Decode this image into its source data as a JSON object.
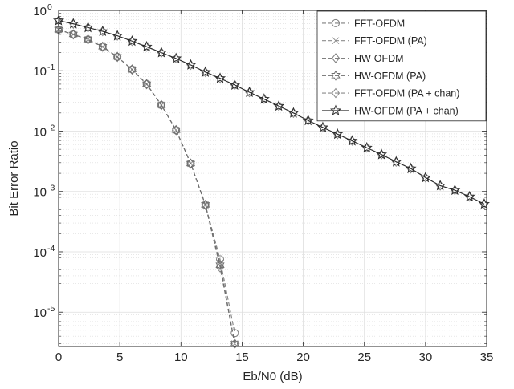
{
  "chart_data": {
    "type": "line",
    "xlabel": "Eb/N0 (dB)",
    "ylabel": "Bit Error Ratio",
    "xlim": [
      0,
      35
    ],
    "ylim": [
      2.7e-06,
      1
    ],
    "yscale": "log",
    "grid": true,
    "minor_grid": true,
    "legend_position": "top-right",
    "x_ticks": [
      0,
      5,
      10,
      15,
      20,
      25,
      30,
      35
    ],
    "x_tick_labels": [
      "0",
      "5",
      "10",
      "15",
      "20",
      "25",
      "30",
      "35"
    ],
    "y_ticks": [
      1e-05,
      0.0001,
      0.001,
      0.01,
      0.1,
      1
    ],
    "y_tick_labels": [
      {
        "base": "10",
        "exp": "-5"
      },
      {
        "base": "10",
        "exp": "-4"
      },
      {
        "base": "10",
        "exp": "-3"
      },
      {
        "base": "10",
        "exp": "-2"
      },
      {
        "base": "10",
        "exp": "-1"
      },
      {
        "base": "10",
        "exp": "0"
      }
    ],
    "series": [
      {
        "name": "FFT-OFDM",
        "marker": "circle",
        "color": "#7f7f7f",
        "dashed": true,
        "x": [
          0,
          1.2,
          2.4,
          3.6,
          4.8,
          6.0,
          7.2,
          8.4,
          9.6,
          10.8,
          12.0,
          13.2,
          14.4
        ],
        "y": [
          0.48,
          0.4,
          0.33,
          0.25,
          0.17,
          0.105,
          0.06,
          0.027,
          0.0104,
          0.0029,
          0.0006,
          7.5e-05,
          4.5e-06
        ]
      },
      {
        "name": "FFT-OFDM (PA)",
        "marker": "x",
        "color": "#8c8c8c",
        "dashed": true,
        "x": [
          0,
          1.2,
          2.4,
          3.6,
          4.8,
          6.0,
          7.2,
          8.4,
          9.6,
          10.8,
          12.0,
          13.2,
          14.4
        ],
        "y": [
          0.48,
          0.4,
          0.33,
          0.25,
          0.17,
          0.105,
          0.06,
          0.027,
          0.0104,
          0.0029,
          0.0006,
          6.5e-05,
          3e-06
        ]
      },
      {
        "name": "HW-OFDM",
        "marker": "diamond",
        "color": "#808080",
        "dashed": true,
        "x": [
          0,
          1.2,
          2.4,
          3.6,
          4.8,
          6.0,
          7.2,
          8.4,
          9.6,
          10.8,
          12.0,
          13.2,
          14.4
        ],
        "y": [
          0.48,
          0.4,
          0.33,
          0.25,
          0.17,
          0.105,
          0.06,
          0.027,
          0.0104,
          0.0029,
          0.0006,
          5.5e-05,
          3e-06
        ]
      },
      {
        "name": "HW-OFDM (PA)",
        "marker": "hexagram",
        "color": "#6e6e6e",
        "dashed": true,
        "x": [
          0,
          1.2,
          2.4,
          3.6,
          4.8,
          6.0,
          7.2,
          8.4,
          9.6,
          10.8,
          12.0,
          13.2,
          14.4
        ],
        "y": [
          0.48,
          0.4,
          0.33,
          0.25,
          0.17,
          0.105,
          0.06,
          0.027,
          0.0104,
          0.0029,
          0.0006,
          6e-05,
          3e-06
        ]
      },
      {
        "name": "FFT-OFDM (PA + chan)",
        "marker": "diamond",
        "color": "#8a8a8a",
        "dashed": true,
        "x": [
          0,
          1.2,
          2.4,
          3.6,
          4.8,
          6.0,
          7.2,
          8.4,
          9.6,
          10.8,
          12.0,
          13.2,
          14.4,
          15.6,
          16.8,
          18.0,
          19.2,
          20.4,
          21.6,
          22.8,
          24.0,
          25.2,
          26.4,
          27.6,
          28.8,
          30.0,
          31.2,
          32.4,
          33.6,
          34.8
        ],
        "y": [
          0.68,
          0.6,
          0.52,
          0.45,
          0.38,
          0.31,
          0.25,
          0.2,
          0.16,
          0.125,
          0.095,
          0.075,
          0.058,
          0.044,
          0.034,
          0.026,
          0.02,
          0.015,
          0.0115,
          0.0089,
          0.0069,
          0.0053,
          0.0041,
          0.0031,
          0.0024,
          0.0017,
          0.00125,
          0.00105,
          0.00082,
          0.00062
        ]
      },
      {
        "name": "HW-OFDM (PA + chan)",
        "marker": "star",
        "color": "#2b2b2b",
        "dashed": false,
        "x": [
          0,
          1.2,
          2.4,
          3.6,
          4.8,
          6.0,
          7.2,
          8.4,
          9.6,
          10.8,
          12.0,
          13.2,
          14.4,
          15.6,
          16.8,
          18.0,
          19.2,
          20.4,
          21.6,
          22.8,
          24.0,
          25.2,
          26.4,
          27.6,
          28.8,
          30.0,
          31.2,
          32.4,
          33.6,
          34.8
        ],
        "y": [
          0.68,
          0.6,
          0.52,
          0.45,
          0.38,
          0.31,
          0.25,
          0.2,
          0.16,
          0.125,
          0.095,
          0.075,
          0.058,
          0.044,
          0.034,
          0.026,
          0.02,
          0.015,
          0.0115,
          0.0089,
          0.0069,
          0.0053,
          0.0041,
          0.0031,
          0.0024,
          0.0017,
          0.00125,
          0.00105,
          0.00082,
          0.00062
        ]
      }
    ]
  }
}
